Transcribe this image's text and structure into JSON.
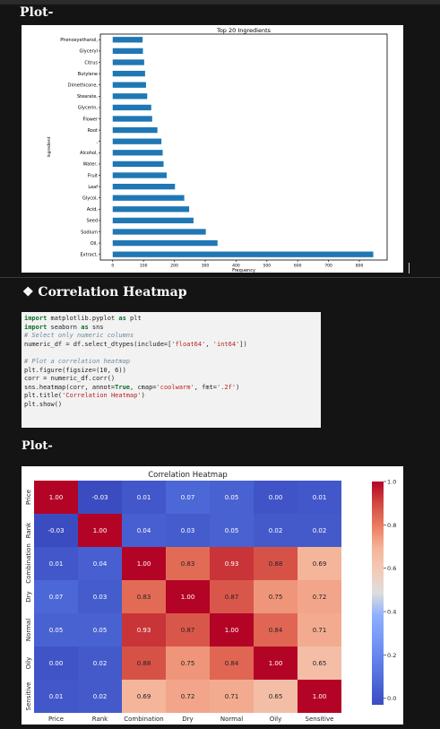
{
  "headings": {
    "plot1": "Plot-",
    "correlation": "❖ Correlation Heatmap",
    "plot2": "Plot-"
  },
  "code_lines": [
    "import matplotlib.pyplot as plt",
    "import seaborn as sns",
    "# Select only numeric columns",
    "numeric_df = df.select_dtypes(include=['float64', 'int64'])",
    "",
    "# Plot a correlation heatmap",
    "plt.figure(figsize=(10, 6))",
    "corr = numeric_df.corr()",
    "sns.heatmap(corr, annot=True, cmap='coolwarm', fmt='.2f')",
    "plt.title('Correlation Heatmap')",
    "plt.show()"
  ],
  "chart_data": [
    {
      "type": "bar",
      "orientation": "horizontal",
      "title": "Top 20 Ingredients",
      "xlabel": "Frequency",
      "ylabel": "Ingredient",
      "categories": [
        "Extract,",
        "Oil,",
        "Sodium",
        "Seed",
        "Acid,",
        "Glycol,",
        "Leaf",
        "Fruit",
        "Water,",
        "Alcohol,",
        ",",
        "Root",
        "Flower",
        "Glycerin,",
        "Stearate,",
        "Dimethicone,",
        "Butylene",
        "Citrus",
        "Glyceryl",
        "Phenoxyethanol,"
      ],
      "values": [
        845,
        340,
        302,
        262,
        248,
        232,
        202,
        175,
        165,
        162,
        158,
        145,
        128,
        125,
        112,
        108,
        105,
        102,
        98,
        97
      ],
      "xticks": [
        0,
        100,
        200,
        300,
        400,
        500,
        600,
        700,
        800
      ],
      "xlim": [
        -40,
        890
      ],
      "color": "#1f77b4"
    },
    {
      "type": "heatmap",
      "title": "Correlation Heatmap",
      "labels": [
        "Price",
        "Rank",
        "Combination",
        "Dry",
        "Normal",
        "Oily",
        "Sensitive"
      ],
      "matrix": [
        [
          1.0,
          -0.03,
          0.01,
          0.07,
          0.05,
          0.0,
          0.01
        ],
        [
          -0.03,
          1.0,
          0.04,
          0.03,
          0.05,
          0.02,
          0.02
        ],
        [
          0.01,
          0.04,
          1.0,
          0.83,
          0.93,
          0.88,
          0.69
        ],
        [
          0.07,
          0.03,
          0.83,
          1.0,
          0.87,
          0.75,
          0.72
        ],
        [
          0.05,
          0.05,
          0.93,
          0.87,
          1.0,
          0.84,
          0.71
        ],
        [
          0.0,
          0.02,
          0.88,
          0.75,
          0.84,
          1.0,
          0.65
        ],
        [
          0.01,
          0.02,
          0.69,
          0.72,
          0.71,
          0.65,
          1.0
        ]
      ],
      "colorbar_ticks": [
        "0.0",
        "0.2",
        "0.4",
        "0.6",
        "0.8",
        "1.0"
      ],
      "range": [
        -0.03,
        1.0
      ],
      "colormap": "coolwarm"
    }
  ]
}
